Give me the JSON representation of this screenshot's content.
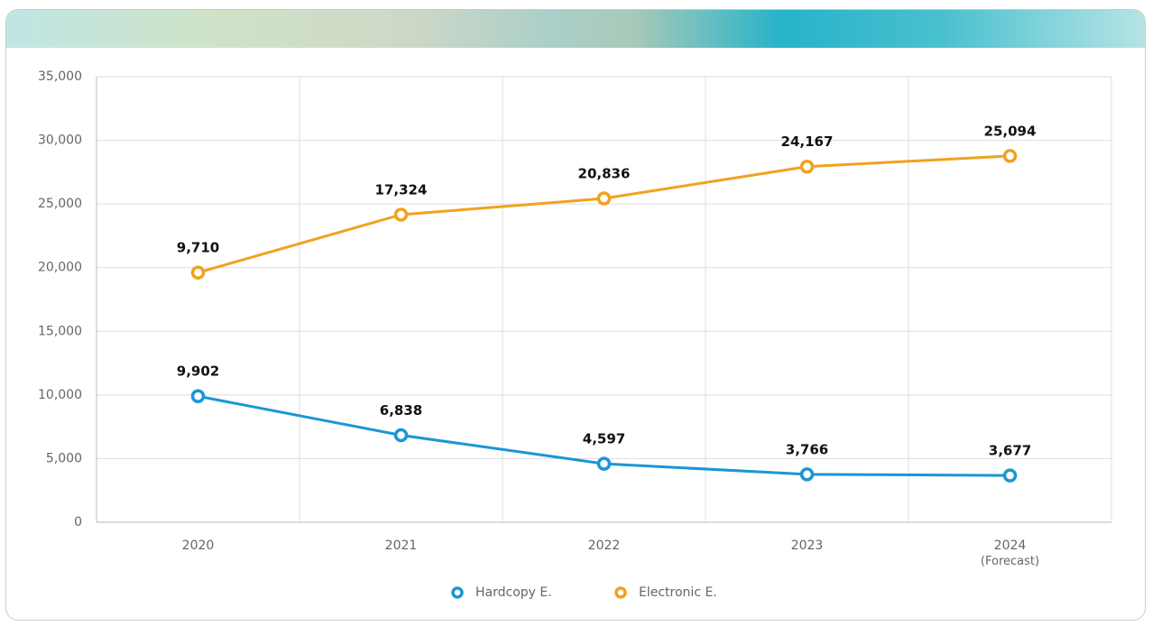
{
  "chart_data": {
    "type": "line",
    "stacked": true,
    "categories": [
      "2020",
      "2021",
      "2022",
      "2023",
      "2024 (Forecast)"
    ],
    "series": [
      {
        "name": "Hardcopy E.",
        "color": "#1a96d4",
        "values": [
          9902,
          6838,
          4597,
          3766,
          3677
        ],
        "value_labels": [
          "9,902",
          "6,838",
          "4,597",
          "3,766",
          "3,677"
        ]
      },
      {
        "name": "Electronic E.",
        "color": "#f0a21e",
        "values": [
          9710,
          17324,
          20836,
          24167,
          25094
        ],
        "value_labels": [
          "9,710",
          "17,324",
          "20,836",
          "24,167",
          "25,094"
        ]
      }
    ],
    "ylim": [
      0,
      35000
    ],
    "yticks": [
      0,
      {
        "value": 5000,
        "label": "5,000"
      },
      {
        "value": 10000,
        "label": "10,000"
      },
      {
        "value": 15000,
        "label": "15,000"
      },
      {
        "value": 20000,
        "label": "20,000"
      },
      {
        "value": 25000,
        "label": "25,000"
      },
      {
        "value": 30000,
        "label": "30,000"
      },
      {
        "value": 35000,
        "label": "35,000"
      }
    ],
    "grid": true,
    "legend": "bottom"
  }
}
